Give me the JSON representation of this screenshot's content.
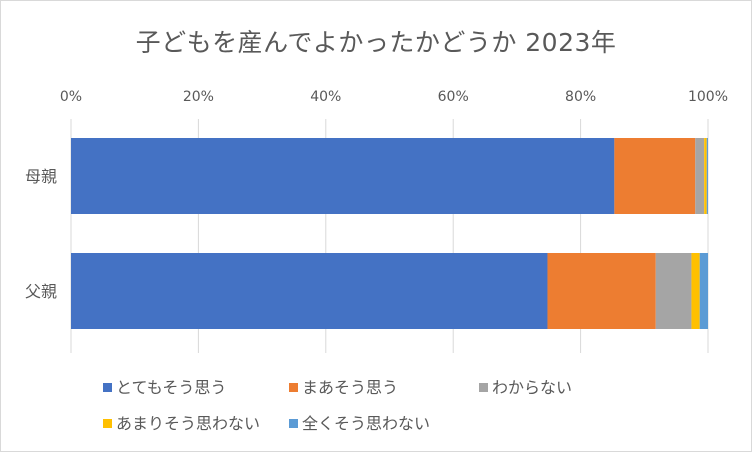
{
  "chart_data": {
    "type": "bar",
    "orientation": "horizontal",
    "stacked": "percent",
    "title": "子どもを産んでよかったかどうか 2023年",
    "categories": [
      "母親",
      "父親"
    ],
    "series": [
      {
        "name": "とてもそう思う",
        "color": "#4472C4",
        "values": [
          85.3,
          74.8
        ]
      },
      {
        "name": "まあそう思う",
        "color": "#ED7D31",
        "values": [
          12.7,
          17.0
        ]
      },
      {
        "name": "わからない",
        "color": "#A5A5A5",
        "values": [
          1.4,
          5.6
        ]
      },
      {
        "name": "あまりそう思わない",
        "color": "#FFC000",
        "values": [
          0.4,
          1.3
        ]
      },
      {
        "name": "全くそう思わない",
        "color": "#5B9BD5",
        "values": [
          0.2,
          1.3
        ]
      }
    ],
    "xlim": [
      0,
      100
    ],
    "x_ticks": [
      0,
      20,
      40,
      60,
      80,
      100
    ],
    "x_tick_labels": [
      "0%",
      "20%",
      "40%",
      "60%",
      "80%",
      "100%"
    ],
    "x_axis_position": "top",
    "grid": true,
    "legend_position": "bottom"
  }
}
